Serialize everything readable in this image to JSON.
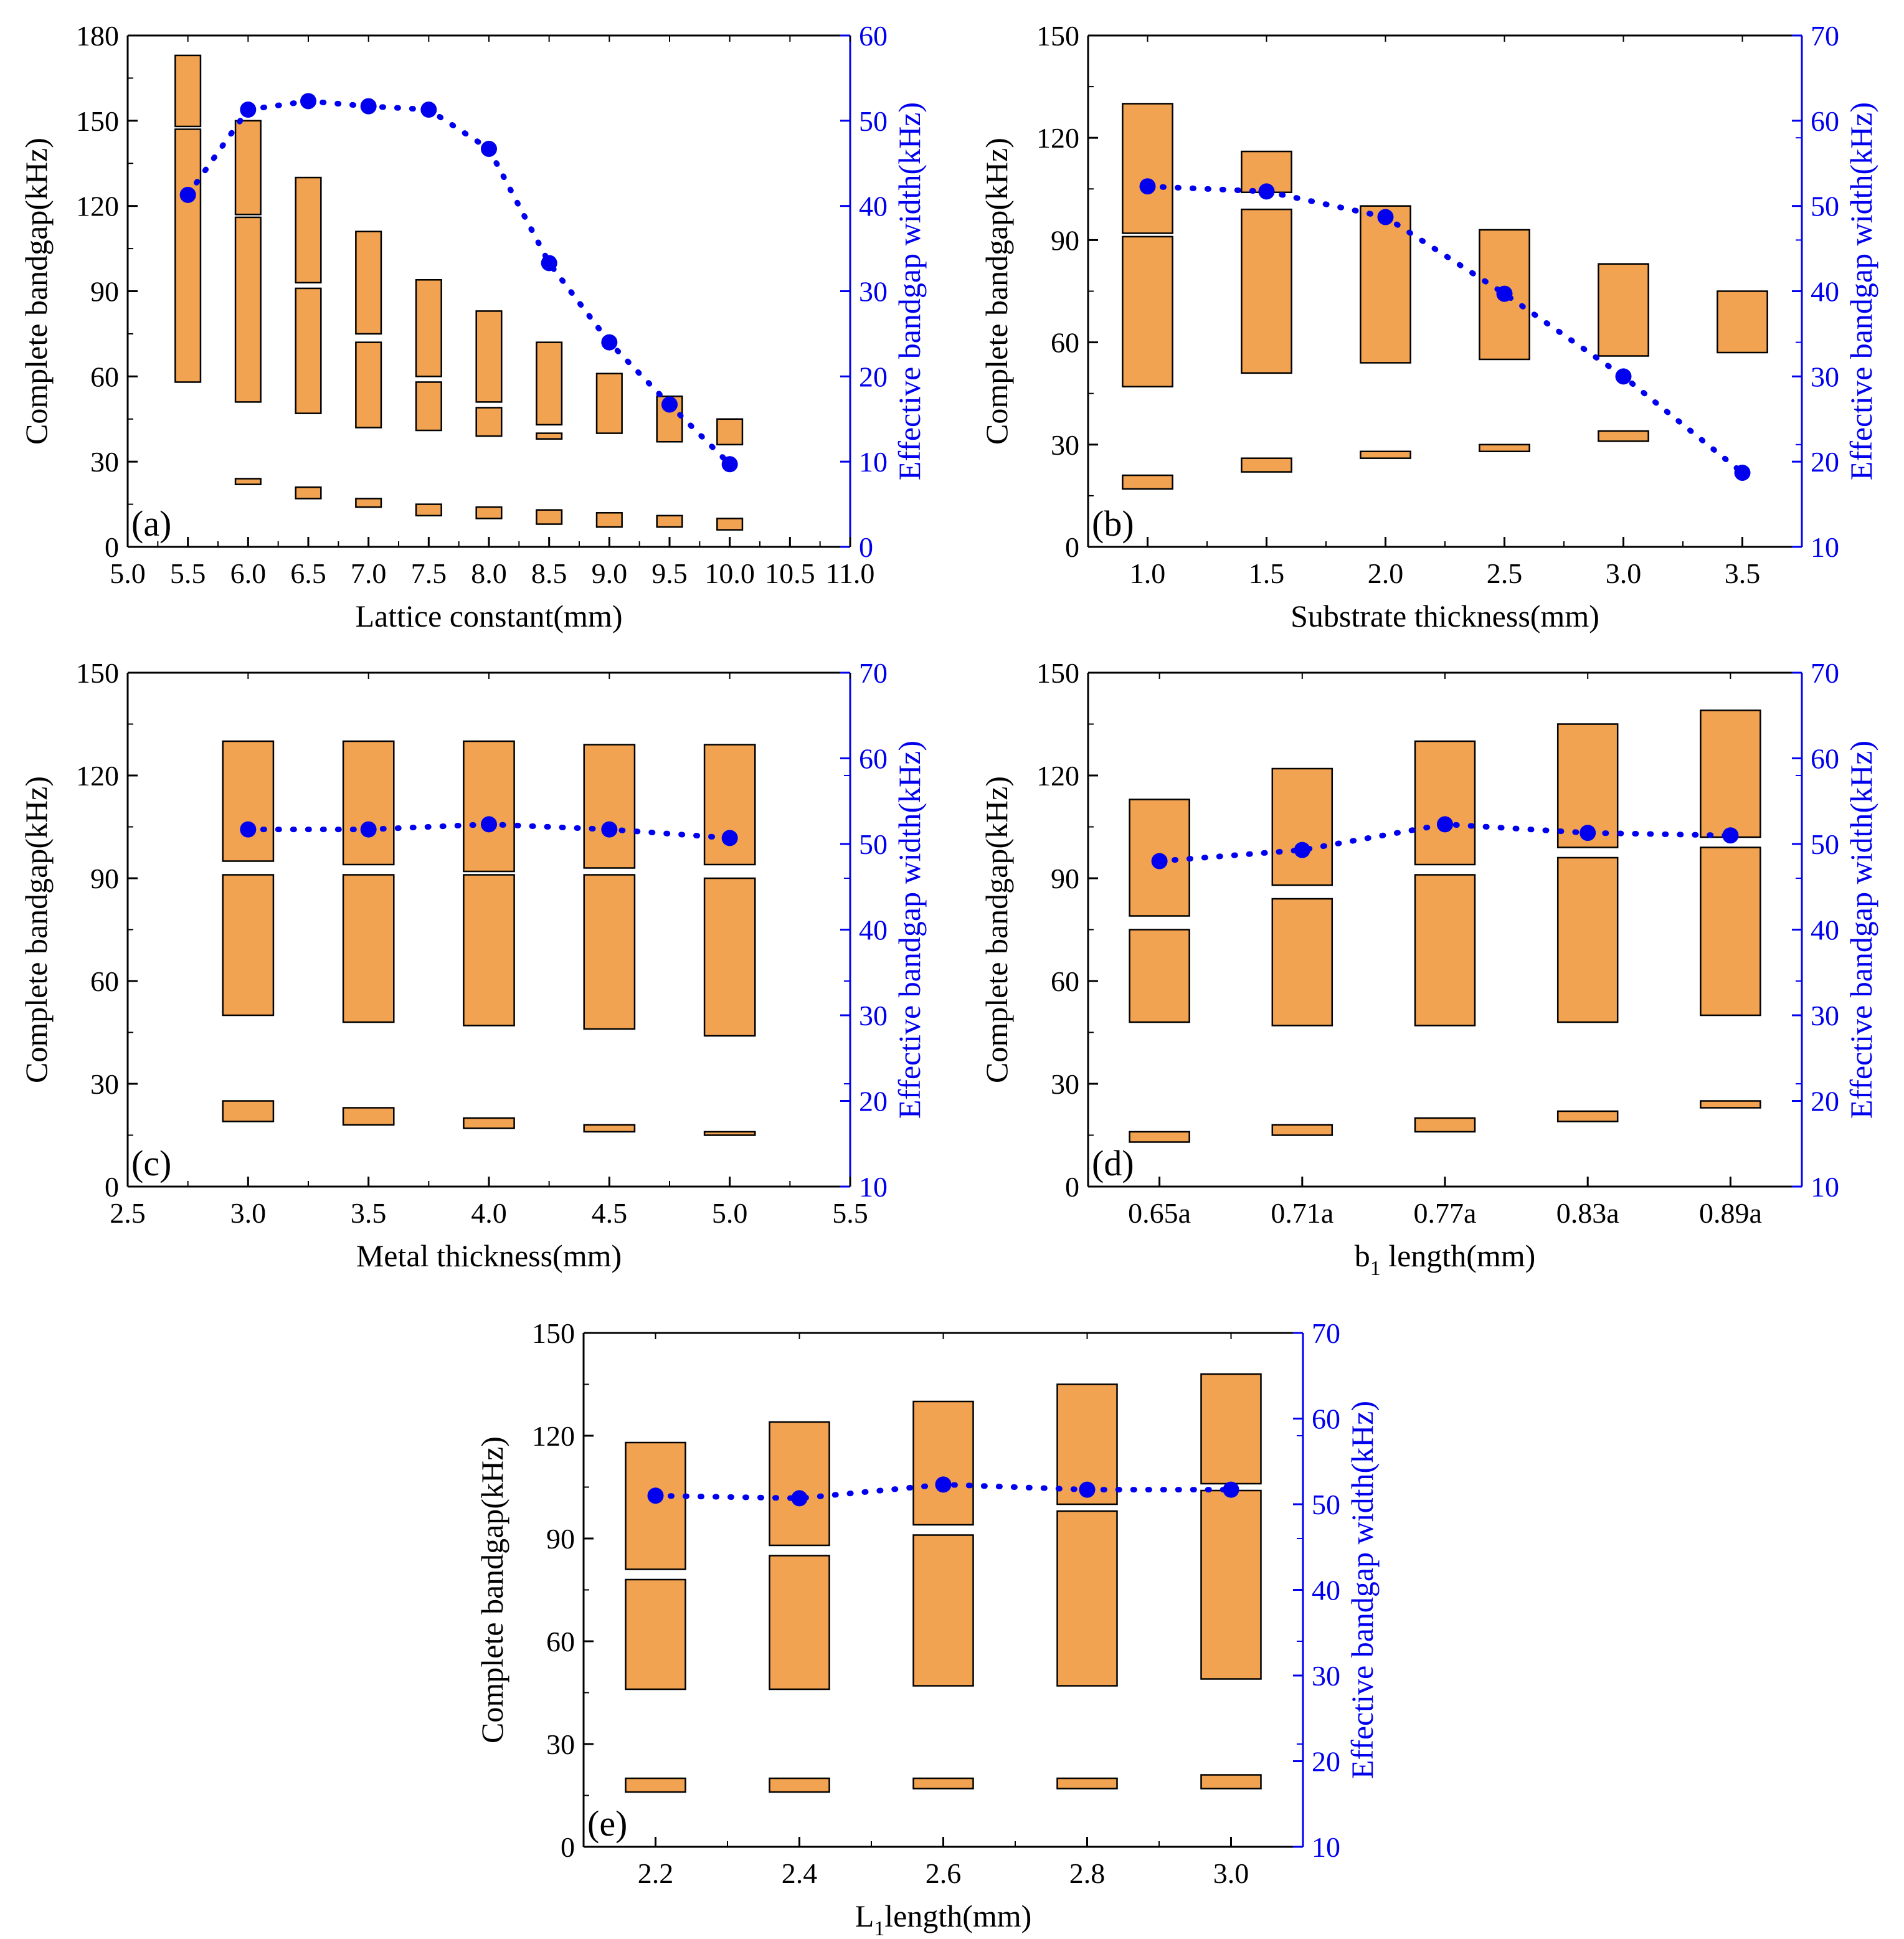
{
  "figure": {
    "fill_color": "#f2a351",
    "series_color": "#0000ee"
  },
  "chart_data": [
    {
      "type": "bar",
      "panel": "(a)",
      "xlabel": "Lattice constant(mm)",
      "ylabel": "Complete bandgap(kHz)",
      "y2label": "Effective bandgap width(kHz)",
      "xlim": [
        5.0,
        11.0
      ],
      "ylim": [
        0,
        180
      ],
      "y2lim": [
        0,
        60
      ],
      "xticks": [
        "5.0",
        "5.5",
        "6.0",
        "6.5",
        "7.0",
        "7.5",
        "8.0",
        "8.5",
        "9.0",
        "9.5",
        "10.0",
        "10.5",
        "11.0"
      ],
      "yticks": [
        "0",
        "30",
        "60",
        "90",
        "120",
        "150",
        "180"
      ],
      "y2ticks": [
        "0",
        "10",
        "20",
        "30",
        "40",
        "50",
        "60"
      ],
      "x": [
        5.5,
        6.0,
        6.5,
        7.0,
        7.5,
        8.0,
        8.5,
        9.0,
        9.5,
        10.0
      ],
      "bandgaps": [
        [
          [
            58,
            147
          ],
          [
            148,
            173
          ]
        ],
        [
          [
            22,
            24
          ],
          [
            51,
            116
          ],
          [
            117,
            150
          ]
        ],
        [
          [
            17,
            21
          ],
          [
            47,
            91
          ],
          [
            93,
            130
          ]
        ],
        [
          [
            14,
            17
          ],
          [
            42,
            72
          ],
          [
            75,
            111
          ]
        ],
        [
          [
            11,
            15
          ],
          [
            41,
            58
          ],
          [
            60,
            94
          ]
        ],
        [
          [
            10,
            14
          ],
          [
            39,
            49
          ],
          [
            51,
            83
          ]
        ],
        [
          [
            8,
            13
          ],
          [
            38,
            40
          ],
          [
            43,
            72
          ]
        ],
        [
          [
            7,
            12
          ],
          [
            40,
            61
          ]
        ],
        [
          [
            7,
            11
          ],
          [
            37,
            53
          ]
        ],
        [
          [
            6,
            10
          ],
          [
            36,
            45
          ]
        ]
      ],
      "effective_width": [
        41.3,
        51.3,
        52.3,
        51.7,
        51.3,
        46.7,
        33.3,
        24.0,
        16.7,
        9.7
      ]
    },
    {
      "type": "bar",
      "panel": "(b)",
      "xlabel": "Substrate thickness(mm)",
      "ylabel": "Complete bandgap(kHz)",
      "y2label": "Effective bandgap width(kHz)",
      "xlim": [
        0.75,
        3.75
      ],
      "ylim": [
        0,
        150
      ],
      "y2lim": [
        10,
        70
      ],
      "xticks": [
        "1.0",
        "1.5",
        "2.0",
        "2.5",
        "3.0",
        "3.5"
      ],
      "yticks": [
        "0",
        "30",
        "60",
        "90",
        "120",
        "150"
      ],
      "y2ticks": [
        "10",
        "20",
        "30",
        "40",
        "50",
        "60",
        "70"
      ],
      "x": [
        1.0,
        1.5,
        2.0,
        2.5,
        3.0,
        3.5
      ],
      "bandgaps": [
        [
          [
            17,
            21
          ],
          [
            47,
            91
          ],
          [
            92,
            130
          ]
        ],
        [
          [
            22,
            26
          ],
          [
            51,
            99
          ],
          [
            104,
            116
          ]
        ],
        [
          [
            26,
            28
          ],
          [
            54,
            100
          ]
        ],
        [
          [
            28,
            30
          ],
          [
            55,
            93
          ]
        ],
        [
          [
            31,
            34
          ],
          [
            56,
            83
          ]
        ],
        [
          [
            57,
            75
          ]
        ]
      ],
      "effective_width": [
        52.3,
        51.7,
        48.7,
        39.7,
        30.0,
        18.7
      ]
    },
    {
      "type": "bar",
      "panel": "(c)",
      "xlabel": "Metal thickness(mm)",
      "ylabel": "Complete bandgap(kHz)",
      "y2label": "Effective bandgap width(kHz)",
      "xlim": [
        2.5,
        5.5
      ],
      "ylim": [
        0,
        150
      ],
      "y2lim": [
        10,
        70
      ],
      "xticks": [
        "2.5",
        "3.0",
        "3.5",
        "4.0",
        "4.5",
        "5.0",
        "5.5"
      ],
      "yticks": [
        "0",
        "30",
        "60",
        "90",
        "120",
        "150"
      ],
      "y2ticks": [
        "10",
        "20",
        "30",
        "40",
        "50",
        "60",
        "70"
      ],
      "x": [
        3.0,
        3.5,
        4.0,
        4.5,
        5.0
      ],
      "bandgaps": [
        [
          [
            19,
            25
          ],
          [
            50,
            91
          ],
          [
            95,
            130
          ]
        ],
        [
          [
            18,
            23
          ],
          [
            48,
            91
          ],
          [
            94,
            130
          ]
        ],
        [
          [
            17,
            20
          ],
          [
            47,
            91
          ],
          [
            92,
            130
          ]
        ],
        [
          [
            16,
            18
          ],
          [
            46,
            91
          ],
          [
            93,
            129
          ]
        ],
        [
          [
            15,
            16
          ],
          [
            44,
            90
          ],
          [
            94,
            129
          ]
        ]
      ],
      "effective_width": [
        51.7,
        51.7,
        52.3,
        51.7,
        50.7
      ]
    },
    {
      "type": "bar",
      "panel": "(d)",
      "xlabel_main": "b",
      "xlabel_sub": "1",
      "xlabel_rest": " length(mm)",
      "ylabel": "Complete bandgap(kHz)",
      "y2label": "Effective bandgap width(kHz)",
      "xlim": [
        0.5,
        5.5
      ],
      "ylim": [
        0,
        150
      ],
      "y2lim": [
        10,
        70
      ],
      "xticks": [
        "0.65a",
        "0.71a",
        "0.77a",
        "0.83a",
        "0.89a"
      ],
      "yticks": [
        "0",
        "30",
        "60",
        "90",
        "120",
        "150"
      ],
      "y2ticks": [
        "10",
        "20",
        "30",
        "40",
        "50",
        "60",
        "70"
      ],
      "x": [
        1,
        2,
        3,
        4,
        5
      ],
      "bandgaps": [
        [
          [
            13,
            16
          ],
          [
            48,
            75
          ],
          [
            79,
            113
          ]
        ],
        [
          [
            15,
            18
          ],
          [
            47,
            84
          ],
          [
            88,
            122
          ]
        ],
        [
          [
            16,
            20
          ],
          [
            47,
            91
          ],
          [
            94,
            130
          ]
        ],
        [
          [
            19,
            22
          ],
          [
            48,
            96
          ],
          [
            99,
            135
          ]
        ],
        [
          [
            23,
            25
          ],
          [
            50,
            99
          ],
          [
            102,
            139
          ]
        ]
      ],
      "effective_width": [
        48.0,
        49.3,
        52.3,
        51.3,
        51.0
      ]
    },
    {
      "type": "bar",
      "panel": "(e)",
      "xlabel_main": "L",
      "xlabel_sub": "1",
      "xlabel_rest": "length(mm)",
      "ylabel": "Complete bandgap(kHz)",
      "y2label": "Effective bandgap width(kHz)",
      "xlim": [
        2.1,
        3.1
      ],
      "ylim": [
        0,
        150
      ],
      "y2lim": [
        10,
        70
      ],
      "xticks": [
        "2.2",
        "2.4",
        "2.6",
        "2.8",
        "3.0"
      ],
      "yticks": [
        "0",
        "30",
        "60",
        "90",
        "120",
        "150"
      ],
      "y2ticks": [
        "10",
        "20",
        "30",
        "40",
        "50",
        "60",
        "70"
      ],
      "x": [
        2.2,
        2.4,
        2.6,
        2.8,
        3.0
      ],
      "bandgaps": [
        [
          [
            16,
            20
          ],
          [
            46,
            78
          ],
          [
            81,
            118
          ]
        ],
        [
          [
            16,
            20
          ],
          [
            46,
            85
          ],
          [
            88,
            124
          ]
        ],
        [
          [
            17,
            20
          ],
          [
            47,
            91
          ],
          [
            94,
            130
          ]
        ],
        [
          [
            17,
            20
          ],
          [
            47,
            98
          ],
          [
            100,
            135
          ]
        ],
        [
          [
            17,
            21
          ],
          [
            49,
            104
          ],
          [
            106,
            138
          ]
        ]
      ],
      "effective_width": [
        51.0,
        50.7,
        52.3,
        51.7,
        51.7
      ]
    }
  ]
}
